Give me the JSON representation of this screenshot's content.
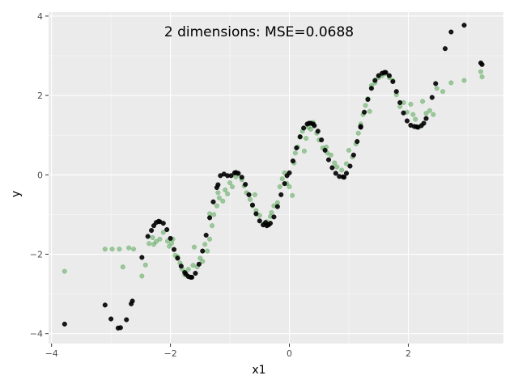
{
  "chart_data": {
    "type": "scatter",
    "title": "2 dimensions: MSE=0.0688",
    "xlabel": "x1",
    "ylabel": "y",
    "xlim": [
      -4.05,
      3.6
    ],
    "ylim": [
      -4.25,
      4.1
    ],
    "x_ticks": [
      -4,
      -2,
      0,
      2
    ],
    "x_tick_labels": [
      "−4",
      "−2",
      "0",
      "2"
    ],
    "y_ticks": [
      -4,
      -2,
      0,
      2,
      4
    ],
    "y_tick_labels": [
      "−4",
      "−2",
      "0",
      "2",
      "4"
    ],
    "grid": true,
    "legend": "none",
    "series": [
      {
        "color": "#3a9a3a",
        "alpha": 0.45,
        "points": [
          [
            -3.78,
            -2.43
          ],
          [
            -3.1,
            -1.87
          ],
          [
            -2.98,
            -1.87
          ],
          [
            -2.86,
            -1.87
          ],
          [
            -2.8,
            -2.32
          ],
          [
            -2.7,
            -1.84
          ],
          [
            -2.62,
            -1.87
          ],
          [
            -2.42,
            -2.27
          ],
          [
            -2.48,
            -2.55
          ],
          [
            -2.36,
            -1.73
          ],
          [
            -2.3,
            -1.58
          ],
          [
            -2.24,
            -1.68
          ],
          [
            -2.18,
            -1.62
          ],
          [
            -2.12,
            -1.45
          ],
          [
            -2.05,
            -1.67
          ],
          [
            -2.02,
            -1.8
          ],
          [
            -1.96,
            -1.62
          ],
          [
            -1.92,
            -2.03
          ],
          [
            -1.88,
            -2.06
          ],
          [
            -1.84,
            -2.22
          ],
          [
            -1.8,
            -2.38
          ],
          [
            -1.76,
            -2.52
          ],
          [
            -1.7,
            -2.38
          ],
          [
            -1.62,
            -2.28
          ],
          [
            -1.55,
            -2.32
          ],
          [
            -1.5,
            -2.1
          ],
          [
            -1.46,
            -2.18
          ],
          [
            -1.42,
            -1.75
          ],
          [
            -1.38,
            -1.92
          ],
          [
            -1.34,
            -1.62
          ],
          [
            -1.3,
            -1.28
          ],
          [
            -1.27,
            -1.0
          ],
          [
            -1.34,
            -0.98
          ],
          [
            -1.22,
            -0.78
          ],
          [
            -1.18,
            -0.58
          ],
          [
            -1.12,
            -0.66
          ],
          [
            -1.08,
            -0.38
          ],
          [
            -1.04,
            -0.48
          ],
          [
            -1.0,
            -0.2
          ],
          [
            -0.96,
            -0.3
          ],
          [
            -0.9,
            -0.05
          ],
          [
            -0.86,
            0.02
          ],
          [
            -0.8,
            -0.12
          ],
          [
            -0.76,
            -0.28
          ],
          [
            -0.72,
            -0.45
          ],
          [
            -0.66,
            -0.62
          ],
          [
            -0.62,
            -0.78
          ],
          [
            -0.56,
            -0.9
          ],
          [
            -0.5,
            -1.02
          ],
          [
            -0.44,
            -1.25
          ],
          [
            -0.38,
            -1.18
          ],
          [
            -0.32,
            -1.05
          ],
          [
            -0.26,
            -0.78
          ],
          [
            -0.2,
            -0.7
          ],
          [
            -0.16,
            -0.3
          ],
          [
            -0.12,
            -0.1
          ],
          [
            -0.08,
            0.05
          ],
          [
            -0.04,
            -0.22
          ],
          [
            0.0,
            -0.3
          ],
          [
            0.05,
            -0.52
          ],
          [
            0.08,
            0.3
          ],
          [
            0.1,
            0.55
          ],
          [
            0.14,
            0.7
          ],
          [
            0.18,
            0.95
          ],
          [
            0.22,
            1.1
          ],
          [
            0.28,
            0.92
          ],
          [
            0.32,
            1.2
          ],
          [
            0.36,
            1.15
          ],
          [
            0.4,
            1.32
          ],
          [
            0.46,
            1.05
          ],
          [
            0.5,
            0.88
          ],
          [
            0.56,
            0.68
          ],
          [
            0.62,
            0.7
          ],
          [
            0.7,
            0.5
          ],
          [
            0.76,
            0.3
          ],
          [
            0.8,
            0.2
          ],
          [
            0.88,
            0.12
          ],
          [
            0.96,
            0.28
          ],
          [
            1.0,
            0.62
          ],
          [
            1.06,
            0.45
          ],
          [
            1.12,
            0.78
          ],
          [
            1.16,
            1.05
          ],
          [
            1.2,
            1.28
          ],
          [
            1.24,
            1.52
          ],
          [
            1.28,
            1.75
          ],
          [
            1.32,
            1.92
          ],
          [
            1.38,
            2.25
          ],
          [
            1.44,
            2.32
          ],
          [
            1.5,
            2.45
          ],
          [
            1.56,
            2.5
          ],
          [
            1.62,
            2.55
          ],
          [
            1.68,
            2.45
          ],
          [
            1.74,
            2.38
          ],
          [
            1.8,
            2.02
          ],
          [
            1.86,
            1.72
          ],
          [
            1.92,
            1.82
          ],
          [
            1.98,
            1.58
          ],
          [
            2.04,
            1.78
          ],
          [
            2.08,
            1.52
          ],
          [
            2.12,
            1.4
          ],
          [
            2.18,
            1.2
          ],
          [
            2.24,
            1.85
          ],
          [
            2.3,
            1.55
          ],
          [
            2.36,
            1.62
          ],
          [
            2.42,
            1.52
          ],
          [
            2.48,
            2.18
          ],
          [
            2.58,
            2.1
          ],
          [
            2.72,
            2.32
          ],
          [
            2.94,
            2.38
          ],
          [
            3.22,
            2.6
          ],
          [
            3.24,
            2.47
          ],
          [
            -2.28,
            -1.75
          ],
          [
            -1.98,
            -1.72
          ],
          [
            -1.6,
            -1.82
          ],
          [
            -1.2,
            -0.45
          ],
          [
            -0.58,
            -0.5
          ],
          [
            -0.3,
            -0.95
          ],
          [
            0.25,
            0.6
          ],
          [
            0.64,
            0.55
          ],
          [
            1.35,
            1.6
          ]
        ]
      },
      {
        "color": "#000000",
        "alpha": 0.9,
        "points": [
          [
            -3.78,
            -3.76
          ],
          [
            -3.1,
            -3.28
          ],
          [
            -3.0,
            -3.63
          ],
          [
            -2.88,
            -3.86
          ],
          [
            -2.84,
            -3.85
          ],
          [
            -2.74,
            -3.65
          ],
          [
            -2.66,
            -3.25
          ],
          [
            -2.64,
            -3.18
          ],
          [
            -2.48,
            -2.08
          ],
          [
            -2.38,
            -1.55
          ],
          [
            -2.32,
            -1.4
          ],
          [
            -2.28,
            -1.28
          ],
          [
            -2.24,
            -1.2
          ],
          [
            -2.18,
            -1.18
          ],
          [
            -2.12,
            -1.22
          ],
          [
            -2.06,
            -1.38
          ],
          [
            -2.0,
            -1.6
          ],
          [
            -1.94,
            -1.88
          ],
          [
            -1.88,
            -2.1
          ],
          [
            -1.82,
            -2.3
          ],
          [
            -1.76,
            -2.46
          ],
          [
            -1.7,
            -2.56
          ],
          [
            -1.64,
            -2.58
          ],
          [
            -1.58,
            -2.48
          ],
          [
            -1.52,
            -2.25
          ],
          [
            -1.46,
            -1.92
          ],
          [
            -1.4,
            -1.52
          ],
          [
            -1.34,
            -1.08
          ],
          [
            -1.28,
            -0.68
          ],
          [
            -1.22,
            -0.32
          ],
          [
            -1.16,
            -0.02
          ],
          [
            -1.1,
            0.02
          ],
          [
            -1.04,
            -0.02
          ],
          [
            -0.98,
            -0.02
          ],
          [
            -0.92,
            0.05
          ],
          [
            -0.86,
            0.04
          ],
          [
            -0.8,
            -0.06
          ],
          [
            -0.74,
            -0.24
          ],
          [
            -0.68,
            -0.5
          ],
          [
            -0.62,
            -0.76
          ],
          [
            -0.56,
            -0.98
          ],
          [
            -0.5,
            -1.16
          ],
          [
            -0.44,
            -1.26
          ],
          [
            -0.38,
            -1.28
          ],
          [
            -0.32,
            -1.22
          ],
          [
            -0.26,
            -1.06
          ],
          [
            -0.2,
            -0.8
          ],
          [
            -0.14,
            -0.5
          ],
          [
            -0.08,
            -0.22
          ],
          [
            -0.04,
            -0.02
          ],
          [
            0.0,
            0.05
          ],
          [
            0.06,
            0.35
          ],
          [
            0.12,
            0.68
          ],
          [
            0.18,
            0.96
          ],
          [
            0.24,
            1.18
          ],
          [
            0.3,
            1.28
          ],
          [
            0.36,
            1.3
          ],
          [
            0.42,
            1.24
          ],
          [
            0.48,
            1.1
          ],
          [
            0.54,
            0.88
          ],
          [
            0.6,
            0.62
          ],
          [
            0.66,
            0.38
          ],
          [
            0.72,
            0.18
          ],
          [
            0.78,
            0.04
          ],
          [
            0.84,
            -0.04
          ],
          [
            0.9,
            -0.05
          ],
          [
            0.96,
            0.04
          ],
          [
            1.02,
            0.22
          ],
          [
            1.08,
            0.5
          ],
          [
            1.14,
            0.84
          ],
          [
            1.2,
            1.2
          ],
          [
            1.26,
            1.58
          ],
          [
            1.32,
            1.9
          ],
          [
            1.38,
            2.18
          ],
          [
            1.44,
            2.38
          ],
          [
            1.5,
            2.5
          ],
          [
            1.56,
            2.56
          ],
          [
            1.62,
            2.58
          ],
          [
            1.68,
            2.5
          ],
          [
            1.74,
            2.35
          ],
          [
            1.8,
            2.1
          ],
          [
            1.86,
            1.82
          ],
          [
            1.92,
            1.56
          ],
          [
            1.98,
            1.36
          ],
          [
            2.04,
            1.25
          ],
          [
            2.1,
            1.22
          ],
          [
            2.16,
            1.2
          ],
          [
            2.22,
            1.24
          ],
          [
            2.26,
            1.3
          ],
          [
            2.3,
            1.42
          ],
          [
            2.4,
            1.95
          ],
          [
            2.46,
            2.3
          ],
          [
            2.62,
            3.18
          ],
          [
            2.72,
            3.6
          ],
          [
            2.94,
            3.77
          ],
          [
            3.22,
            2.82
          ],
          [
            3.24,
            2.78
          ],
          [
            -1.2,
            -0.25
          ],
          [
            -0.4,
            -1.2
          ],
          [
            0.4,
            1.28
          ],
          [
            1.2,
            1.22
          ],
          [
            -2.2,
            -1.17
          ],
          [
            -1.66,
            -2.58
          ],
          [
            -0.9,
            0.06
          ],
          [
            -0.35,
            -1.26
          ],
          [
            0.33,
            1.3
          ],
          [
            0.92,
            -0.06
          ],
          [
            1.6,
            2.58
          ],
          [
            2.14,
            1.21
          ],
          [
            -1.74,
            -2.5
          ]
        ]
      }
    ]
  }
}
